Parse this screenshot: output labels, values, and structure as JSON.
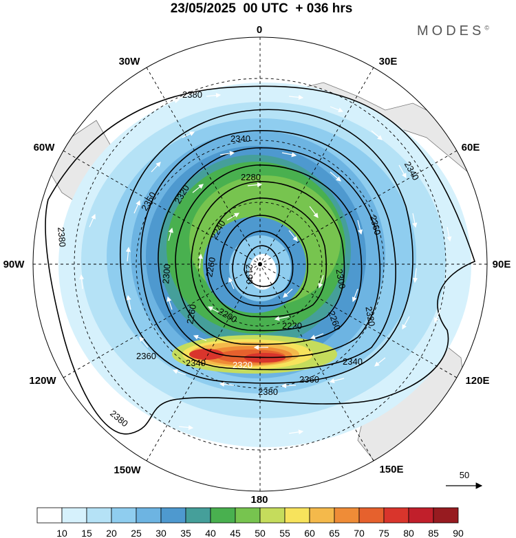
{
  "title": "23/05/2025  00 UTC  + 036 hrs",
  "brand": "MODES",
  "brand_mark": "©",
  "longitude_labels": [
    "0",
    "30E",
    "60E",
    "90E",
    "120E",
    "150E",
    "180",
    "150W",
    "120W",
    "90W",
    "60W",
    "30W"
  ],
  "contour_labels": [
    "2380",
    "2340",
    "2280",
    "2240",
    "2190",
    "2200",
    "2220",
    "2260",
    "2300",
    "2320",
    "2350",
    "2360",
    "2380",
    "2360",
    "2320",
    "2340",
    "2320",
    "2340",
    "2360",
    "2380",
    "2380",
    "2300",
    "2260",
    "2260",
    "2340"
  ],
  "contour_values": [
    2190,
    2200,
    2220,
    2240,
    2260,
    2280,
    2300,
    2320,
    2340,
    2360,
    2380
  ],
  "colorbar": {
    "labels": [
      "10",
      "15",
      "20",
      "25",
      "30",
      "35",
      "40",
      "45",
      "50",
      "55",
      "60",
      "65",
      "70",
      "75",
      "80",
      "85",
      "90"
    ],
    "colors": [
      "#ffffff",
      "#d6f1fc",
      "#b5e2f6",
      "#8fcdef",
      "#6db4e2",
      "#4e99cf",
      "#459f9a",
      "#49b04f",
      "#77c44f",
      "#c5dc5c",
      "#f7e35c",
      "#f4b94b",
      "#ef8c37",
      "#e6612d",
      "#d9352c",
      "#c11f2b",
      "#971b20"
    ]
  },
  "vector_reference": {
    "label": "50"
  }
}
